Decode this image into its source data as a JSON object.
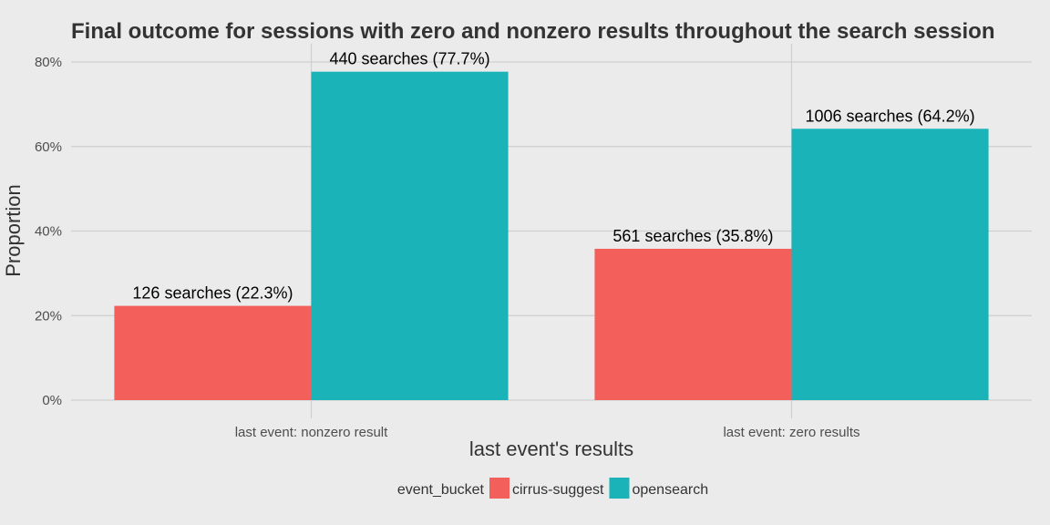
{
  "chart_data": {
    "type": "bar",
    "title": "Final outcome for sessions with zero and nonzero results throughout the search session",
    "xlabel": "last event's results",
    "ylabel": "Proportion",
    "categories": [
      "last event: nonzero result",
      "last event: zero results"
    ],
    "series": [
      {
        "name": "cirrus-suggest",
        "color": "#f35f5b",
        "values": [
          0.223,
          0.358
        ],
        "labels": [
          "126 searches (22.3%)",
          "561 searches (35.8%)"
        ]
      },
      {
        "name": "opensearch",
        "color": "#1ab4b8",
        "values": [
          0.777,
          0.642
        ],
        "labels": [
          "440 searches (77.7%)",
          "1006 searches (64.2%)"
        ]
      }
    ],
    "yticks": [
      0,
      0.2,
      0.4,
      0.6,
      0.8
    ],
    "ytick_labels": [
      "0%",
      "20%",
      "40%",
      "60%",
      "80%"
    ],
    "ylim": [
      0,
      0.8
    ],
    "grid": true,
    "legend": {
      "title": "event_bucket",
      "position": "bottom"
    },
    "background": "#ebebeb",
    "grid_color": "#cfcfcf"
  }
}
